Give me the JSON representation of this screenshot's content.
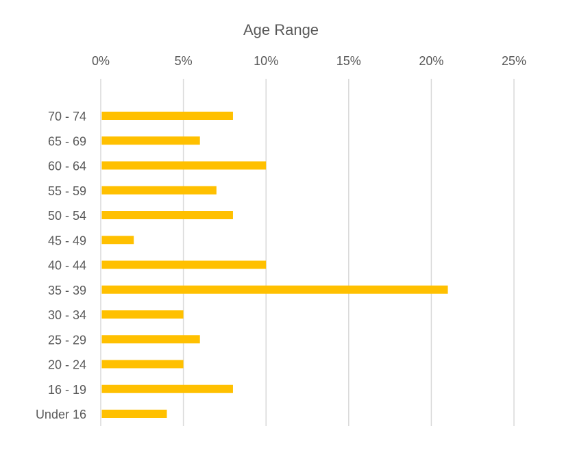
{
  "chart_data": {
    "type": "bar",
    "orientation": "horizontal",
    "title": "Age Range",
    "xlabel": "",
    "ylabel": "",
    "x_axis_position": "top",
    "xlim": [
      0,
      25
    ],
    "x_ticks": [
      0,
      5,
      10,
      15,
      20,
      25
    ],
    "x_tick_labels": [
      "0%",
      "5%",
      "10%",
      "15%",
      "20%",
      "25%"
    ],
    "categories": [
      "70 - 74",
      "65 - 69",
      "60 - 64",
      "55 - 59",
      "50 - 54",
      "45 - 49",
      "40 - 44",
      "35 - 39",
      "30 - 34",
      "25 - 29",
      "20 - 24",
      "16 - 19",
      "Under 16"
    ],
    "values": [
      8,
      6,
      10,
      7,
      8,
      2,
      10,
      21,
      5,
      6,
      5,
      8,
      4
    ],
    "unit": "%",
    "grid": true,
    "legend": "none",
    "bar_color": "#FFC000"
  },
  "colors": {
    "bar": "#FFC000",
    "gridline": "#D9D9D9",
    "text": "#595959"
  }
}
